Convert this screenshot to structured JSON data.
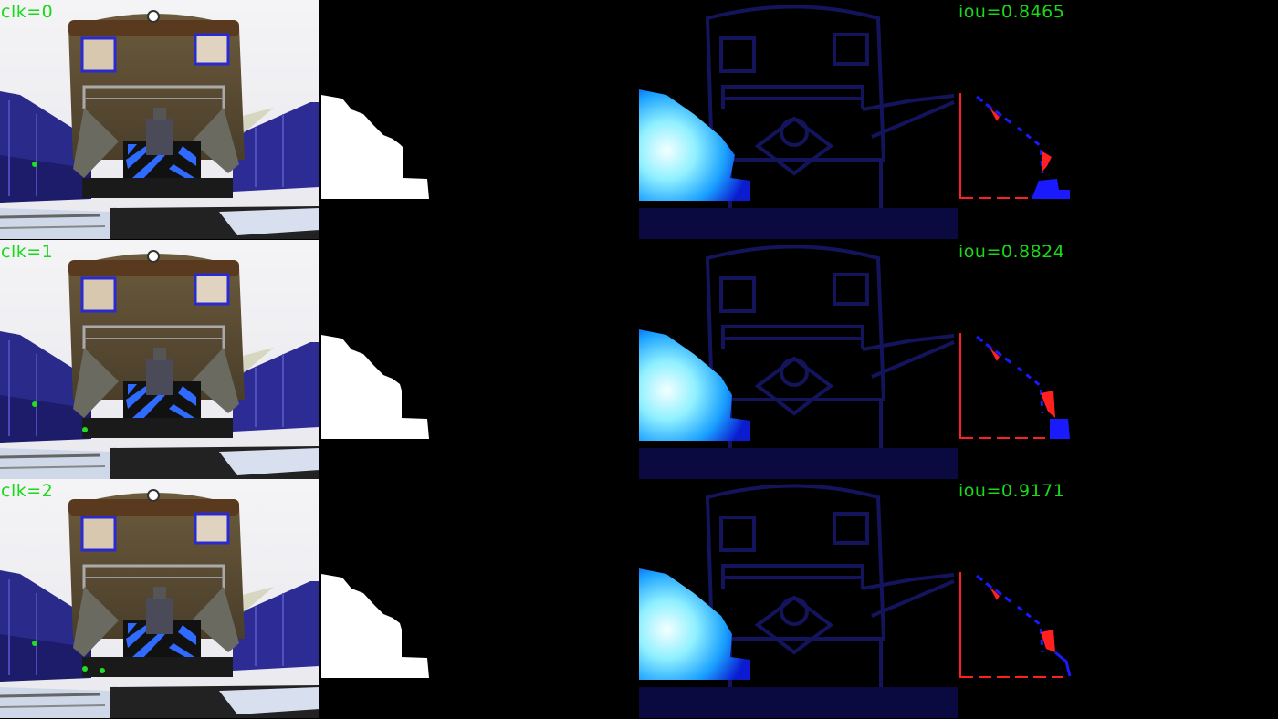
{
  "rows": [
    {
      "clk_label": "clk=0",
      "iou_label": "iou=0.8465"
    },
    {
      "clk_label": "clk=1",
      "iou_label": "iou=0.8824"
    },
    {
      "clk_label": "clk=2",
      "iou_label": "iou=0.9171"
    }
  ],
  "colors": {
    "label_green": "#19d919",
    "mask_white": "#ffffff",
    "heat_peak": "#e8ffff",
    "heat_low": "#0a0a5a",
    "error_red": "#ff2020",
    "error_blue": "#1a1aff"
  }
}
